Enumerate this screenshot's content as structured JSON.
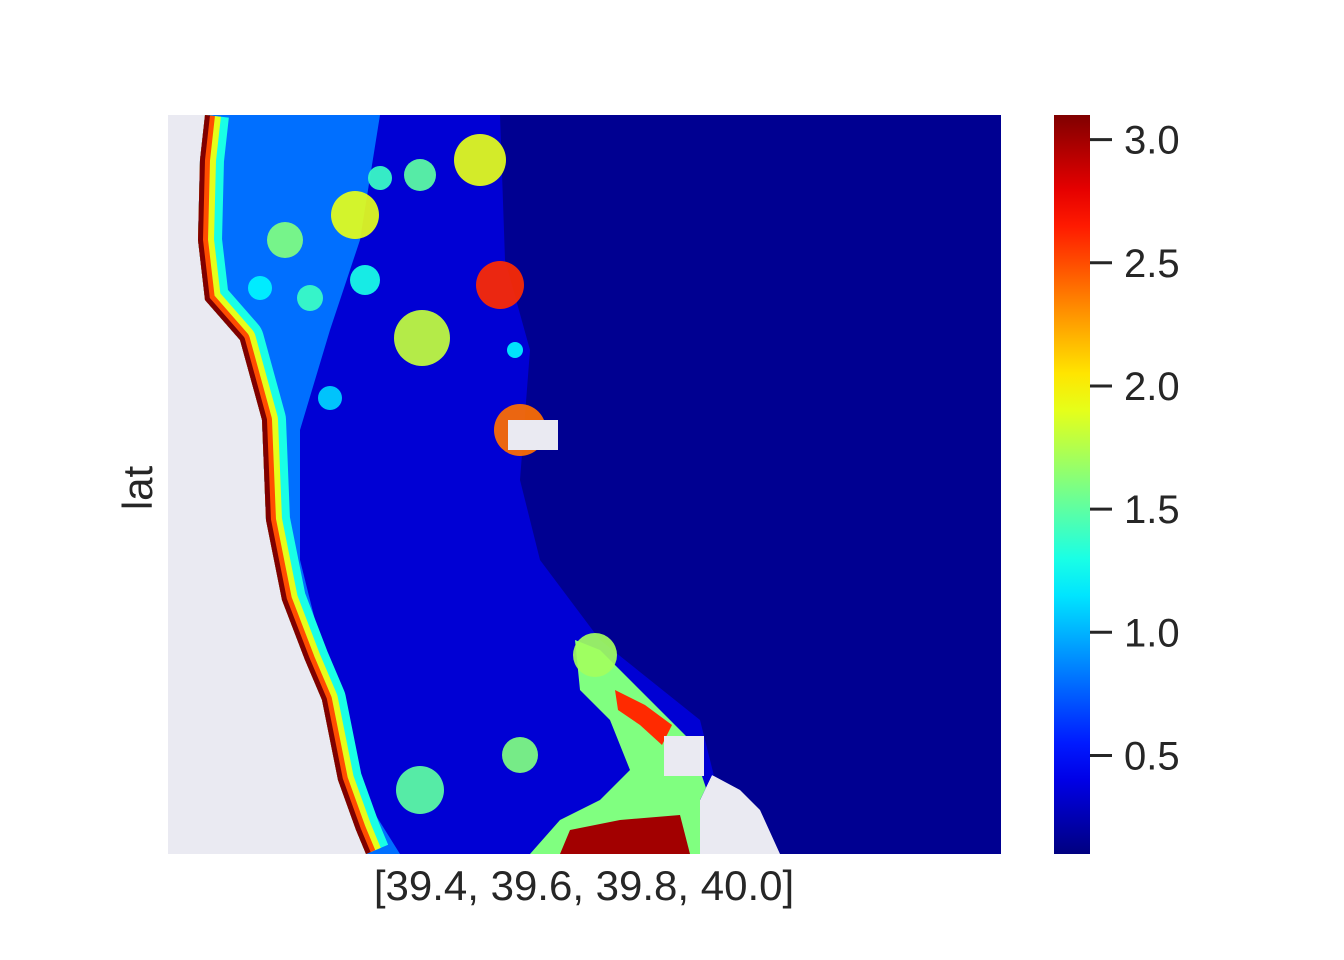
{
  "chart_data": {
    "type": "heatmap",
    "title": "",
    "xlabel": "[39.4, 39.6, 39.8, 40.0]",
    "ylabel": "lat",
    "colormap": "jet",
    "value_range": [
      0.1,
      3.1
    ],
    "colorbar": {
      "ticks": [
        3.0,
        2.5,
        2.0,
        1.5,
        1.0,
        0.5
      ],
      "tick_labels": [
        "3.0",
        "2.5",
        "2.0",
        "1.5",
        "1.0",
        "0.5"
      ]
    },
    "background_color": "#eaeaf2",
    "grid": false,
    "summary_values": {
      "open_sea_east": 0.15,
      "inner_lagoon_west": 0.8,
      "shoal_patches": 1.9,
      "coastline_fringe": 3.1
    }
  }
}
